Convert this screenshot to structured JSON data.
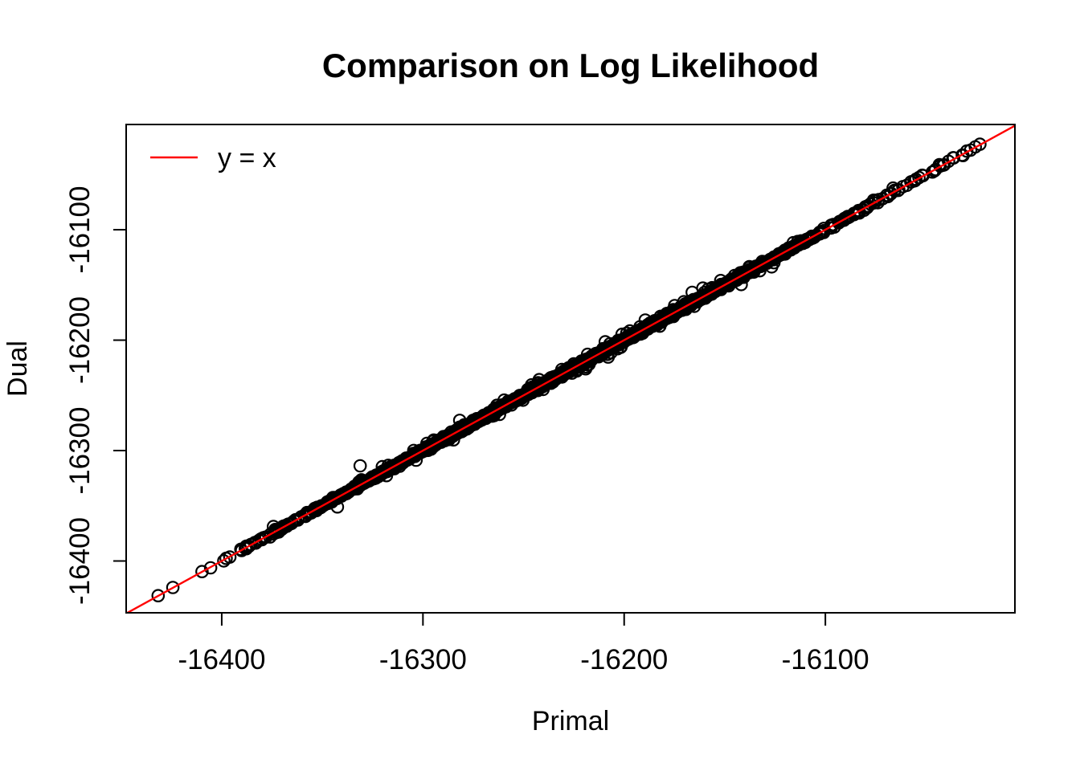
{
  "colors": {
    "background": "#ffffff",
    "foreground": "#000000",
    "identity_line": "#FF0000",
    "point_stroke": "#000000"
  },
  "chart_data": {
    "type": "scatter",
    "title": "Comparison on Log Likelihood",
    "xlabel": "Primal",
    "ylabel": "Dual",
    "xlim": [
      -16447.5,
      -16005.8
    ],
    "ylim": [
      -16446.9,
      -16004.7
    ],
    "grid": false,
    "xticks": [
      -16400,
      -16300,
      -16200,
      -16100
    ],
    "xtick_labels": [
      "-16400",
      "-16300",
      "-16200",
      "-16100"
    ],
    "yticks": [
      -16400,
      -16300,
      -16200,
      -16100
    ],
    "ytick_labels": [
      "-16400",
      "-16300",
      "-16200",
      "-16100"
    ],
    "legend": {
      "position": "topleft",
      "entries": [
        {
          "label": "y = x",
          "type": "line",
          "color": "#FF0000"
        }
      ]
    },
    "identity_line": {
      "equation": "y = x",
      "color": "#FF0000",
      "intercept": 0,
      "slope": 1
    },
    "points": {
      "marker": "open-circle",
      "color": "#000000",
      "description": "Dense cloud of open circles lying almost exactly on the y = x diagonal from about (-16432,-16432) to (-16023,-16023)",
      "dense_cluster": {
        "n": 2100,
        "seed": 42,
        "x_mean": -16225,
        "x_sd": 68,
        "x_min": -16408,
        "x_max": -16028,
        "noise_tiers": [
          {
            "frac": 0.86,
            "sd": 0.8
          },
          {
            "frac": 0.11,
            "sd": 2.2
          },
          {
            "frac": 0.03,
            "sd": 4.0
          }
        ]
      },
      "tail_low": [
        [
          -16431.6,
          -16431.4
        ],
        [
          -16424.3,
          -16424.0
        ],
        [
          -16409.8,
          -16409.6
        ],
        [
          -16397.8,
          -16397.6
        ],
        [
          -16396.0,
          -16396.4
        ],
        [
          -16390.5,
          -16389.4
        ],
        [
          -16388.0,
          -16388.4
        ],
        [
          -16385.5,
          -16385.0
        ],
        [
          -16383.0,
          -16383.4
        ],
        [
          -16380.5,
          -16380.0
        ],
        [
          -16378.0,
          -16378.3
        ],
        [
          -16375.7,
          -16375.6
        ],
        [
          -16373.5,
          -16373.0
        ],
        [
          -16371.8,
          -16371.4
        ],
        [
          -16370.0,
          -16370.3
        ],
        [
          -16368.0,
          -16367.6
        ],
        [
          -16366.2,
          -16366.5
        ],
        [
          -16365.3,
          -16366.0
        ],
        [
          -16364.0,
          -16363.6
        ],
        [
          -16362.2,
          -16362.5
        ],
        [
          -16360.5,
          -16360.0
        ],
        [
          -16358.8,
          -16359.0
        ],
        [
          -16357.0,
          -16356.6
        ],
        [
          -16355.5,
          -16355.8
        ],
        [
          -16354.0,
          -16353.6
        ],
        [
          -16352.0,
          -16352.3
        ],
        [
          -16350.5,
          -16350.0
        ],
        [
          -16349.0,
          -16349.2
        ],
        [
          -16347.5,
          -16347.0
        ],
        [
          -16346.0,
          -16346.3
        ]
      ],
      "tail_high": [
        [
          -16023.2,
          -16022.6
        ],
        [
          -16025.5,
          -16025.0
        ],
        [
          -16027.8,
          -16027.9
        ],
        [
          -16036.5,
          -16034.8
        ],
        [
          -16038.8,
          -16038.0
        ],
        [
          -16041.0,
          -16041.2
        ],
        [
          -16043.0,
          -16042.3
        ],
        [
          -16045.2,
          -16045.5
        ],
        [
          -16051.5,
          -16051.0
        ],
        [
          -16053.5,
          -16052.8
        ],
        [
          -16055.5,
          -16055.6
        ],
        [
          -16057.5,
          -16056.8
        ],
        [
          -16059.5,
          -16059.8
        ],
        [
          -16061.5,
          -16061.0
        ],
        [
          -16063.5,
          -16063.8
        ],
        [
          -16065.5,
          -16064.8
        ],
        [
          -16067.5,
          -16067.6
        ],
        [
          -16069.5,
          -16068.8
        ],
        [
          -16071.5,
          -16071.8
        ],
        [
          -16073.5,
          -16072.8
        ],
        [
          -16075.5,
          -16075.6
        ],
        [
          -16077.5,
          -16076.8
        ]
      ],
      "outliers": [
        [
          -16331.2,
          -16313.8
        ],
        [
          -16209.4,
          -16201.5
        ],
        [
          -16189.5,
          -16181.8
        ],
        [
          -16152.0,
          -16146.0
        ],
        [
          -16246.0,
          -16240.5
        ],
        [
          -16298.0,
          -16293.5
        ]
      ]
    }
  }
}
